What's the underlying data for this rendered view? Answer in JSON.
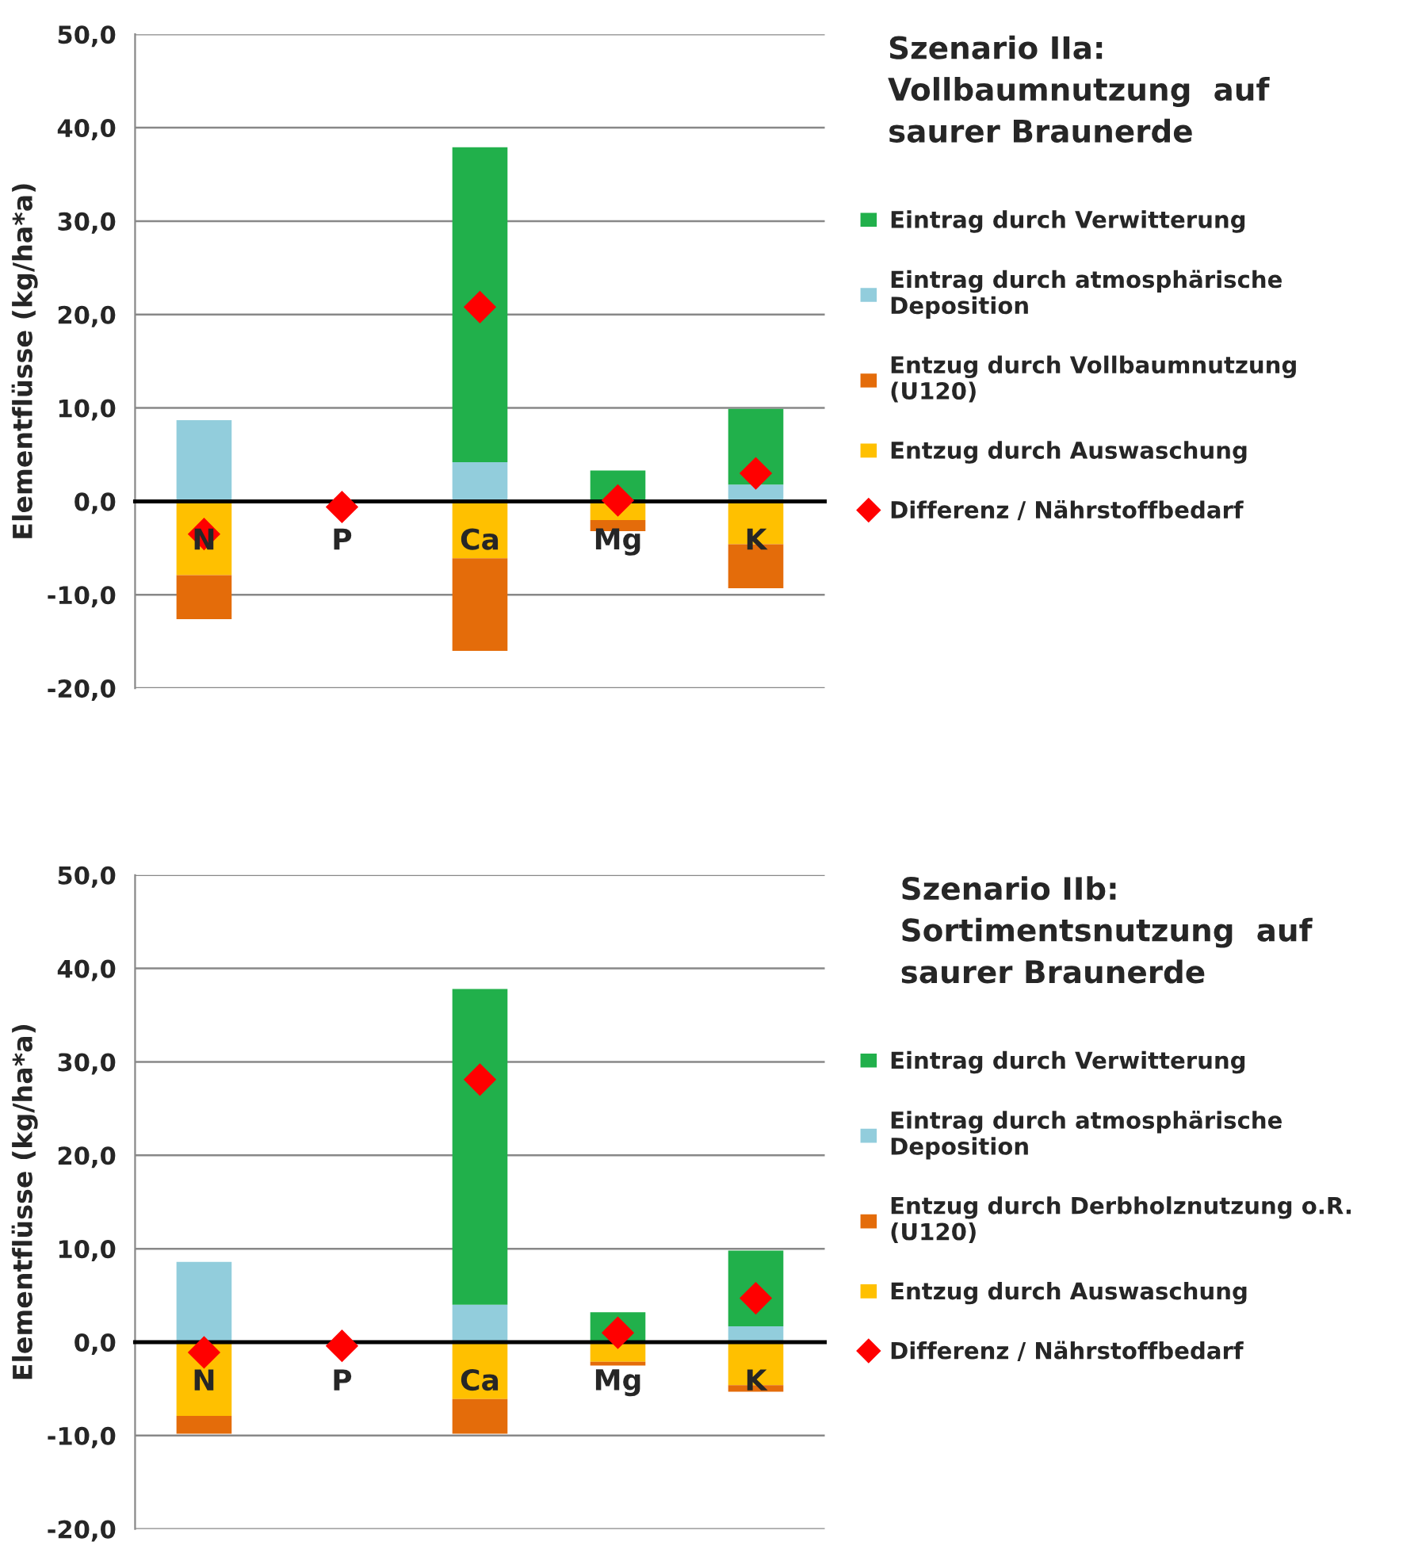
{
  "chart_data": [
    {
      "type": "bar",
      "legend_title": "Szenario IIa:\nVollbaumnutzung  auf\nsaurer Braunerde",
      "ylabel": "Elementflüsse (kg/ha*a)",
      "categories": [
        "N",
        "P",
        "Ca",
        "Mg",
        "K"
      ],
      "stacked": true,
      "ylim": [
        -20,
        50
      ],
      "yticks": [
        {
          "value": -20,
          "label": "-20,0"
        },
        {
          "value": -10,
          "label": "-10,0"
        },
        {
          "value": 0,
          "label": "0,0"
        },
        {
          "value": 10,
          "label": "10,0"
        },
        {
          "value": 20,
          "label": "20,0"
        },
        {
          "value": 30,
          "label": "30,0"
        },
        {
          "value": 40,
          "label": "40,0"
        },
        {
          "value": 50,
          "label": "50,0"
        }
      ],
      "grid": "y",
      "legend": "right",
      "series": [
        {
          "name": "Eintrag durch atmosphärische\nDeposition",
          "color": "#92cddc",
          "values": [
            8.7,
            null,
            4.2,
            0,
            1.8
          ]
        },
        {
          "name": "Eintrag durch Verwitterung",
          "color": "#21b04b",
          "values": [
            0,
            0,
            33.7,
            3.3,
            8.1
          ]
        },
        {
          "name": "Entzug durch Auswaschung",
          "color": "#ffc000",
          "values": [
            -7.9,
            null,
            -6.1,
            -2.0,
            -4.6
          ]
        },
        {
          "name": "Entzug durch Vollbaumnutzung\n(U120)",
          "color": "#e46c0a",
          "values": [
            -4.7,
            null,
            -9.9,
            -1.2,
            -4.7
          ]
        },
        {
          "name": "Differenz / Nährstoffbedarf",
          "type": "scatter",
          "marker": "diamond",
          "color": "#ff0000",
          "values": [
            -3.5,
            -0.6,
            20.8,
            0.1,
            3.0
          ]
        }
      ]
    },
    {
      "type": "bar",
      "legend_title": "Szenario IIb:\nSortimentsnutzung  auf\nsaurer Braunerde",
      "ylabel": "Elementflüsse (kg/ha*a)",
      "categories": [
        "N",
        "P",
        "Ca",
        "Mg",
        "K"
      ],
      "stacked": true,
      "ylim": [
        -20,
        50
      ],
      "yticks": [
        {
          "value": -20,
          "label": "-20,0"
        },
        {
          "value": -10,
          "label": "-10,0"
        },
        {
          "value": 0,
          "label": "0,0"
        },
        {
          "value": 10,
          "label": "10,0"
        },
        {
          "value": 20,
          "label": "20,0"
        },
        {
          "value": 30,
          "label": "30,0"
        },
        {
          "value": 40,
          "label": "40,0"
        },
        {
          "value": 50,
          "label": "50,0"
        }
      ],
      "grid": "y",
      "legend": "right",
      "series": [
        {
          "name": "Eintrag durch atmosphärische\nDeposition",
          "color": "#92cddc",
          "values": [
            8.6,
            null,
            4.0,
            0,
            1.7
          ]
        },
        {
          "name": "Eintrag durch Verwitterung",
          "color": "#21b04b",
          "values": [
            0,
            0,
            33.8,
            3.2,
            8.1
          ]
        },
        {
          "name": "Entzug durch Auswaschung",
          "color": "#ffc000",
          "values": [
            -7.9,
            null,
            -6.1,
            -2.1,
            -4.6
          ]
        },
        {
          "name": "Entzug durch Derbholznutzung o.R.\n(U120)",
          "color": "#e46c0a",
          "values": [
            -1.9,
            null,
            -3.7,
            -0.4,
            -0.7
          ]
        },
        {
          "name": "Differenz / Nährstoffbedarf",
          "type": "scatter",
          "marker": "diamond",
          "color": "#ff0000",
          "values": [
            -1.1,
            -0.4,
            28.1,
            1.0,
            4.7
          ]
        }
      ]
    }
  ]
}
